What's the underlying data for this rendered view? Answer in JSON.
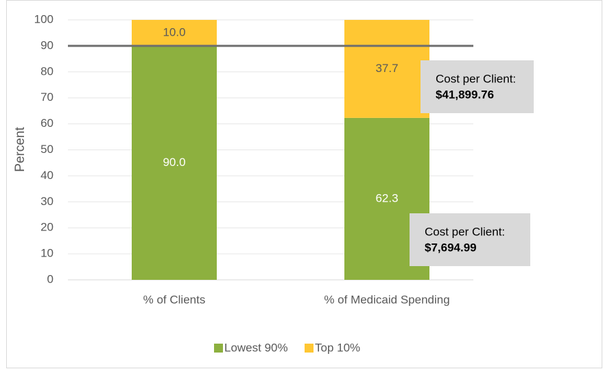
{
  "chart_data": {
    "type": "stacked_bar",
    "ylabel": "Percent",
    "categories": [
      "% of Clients",
      "% of Medicaid Spending"
    ],
    "series": [
      {
        "name": "Lowest 90%",
        "color": "#8db03f",
        "values": [
          90,
          62.3
        ],
        "value_labels": [
          "90.0",
          "62.3"
        ]
      },
      {
        "name": "Top 10%",
        "color": "#ffc733",
        "values": [
          10,
          37.7
        ],
        "value_labels": [
          "10.0",
          "37.7"
        ]
      }
    ],
    "ylim": [
      0,
      100
    ],
    "yticks": [
      0,
      10,
      20,
      30,
      40,
      50,
      60,
      70,
      80,
      90,
      100
    ],
    "grid": true,
    "reference_line": 90,
    "legend": "bottom",
    "annotations": [
      {
        "label": "Cost per Client:",
        "value": "$41,899.76"
      },
      {
        "label": "Cost per Client:",
        "value": "$7,694.99"
      }
    ]
  }
}
